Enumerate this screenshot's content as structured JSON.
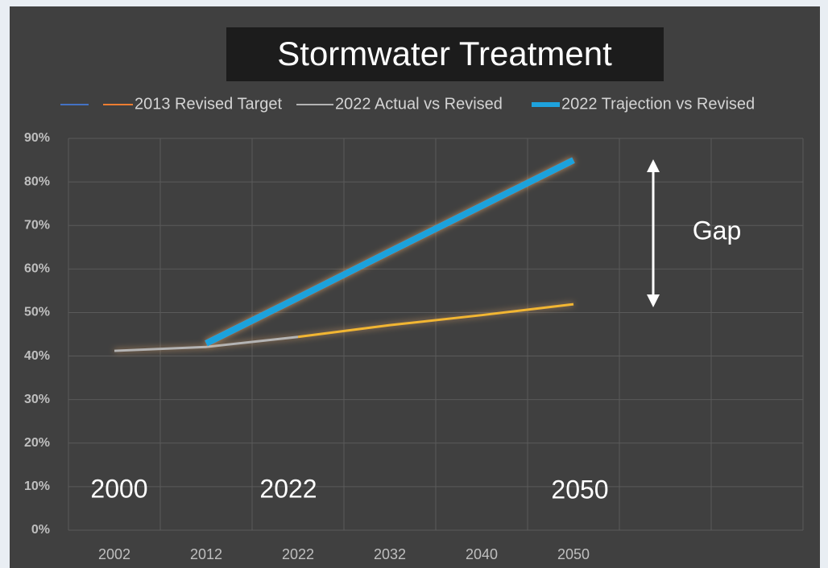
{
  "chart_data": {
    "type": "line",
    "title": "Stormwater Treatment",
    "categories": [
      "2002",
      "2012",
      "2022",
      "2032",
      "2040",
      "2050",
      null,
      null
    ],
    "series": [
      {
        "name": "2013 Revised Target",
        "color": "#f2b632",
        "values": [
          null,
          null,
          44.4,
          47.1,
          49.4,
          51.9,
          null,
          null
        ]
      },
      {
        "name": "2022 Actual vs Revised",
        "color": "#b4b4b4",
        "values": [
          41.2,
          42.1,
          44.4,
          null,
          null,
          null,
          null,
          null
        ]
      },
      {
        "name": "2022 Trajection vs Revised",
        "color": "#1ea2dc",
        "values": [
          null,
          42.9,
          53.4,
          64,
          74.5,
          85,
          null,
          null
        ]
      }
    ],
    "ylim": [
      0,
      90
    ],
    "yticks": [
      {
        "value": 0,
        "label": "0%"
      },
      {
        "value": 10,
        "label": "10%"
      },
      {
        "value": 20,
        "label": "20%"
      },
      {
        "value": 30,
        "label": "30%"
      },
      {
        "value": 40,
        "label": "40%"
      },
      {
        "value": 50,
        "label": "50%"
      },
      {
        "value": 60,
        "label": "60%"
      },
      {
        "value": 70,
        "label": "70%"
      },
      {
        "value": 80,
        "label": "80%"
      },
      {
        "value": 90,
        "label": "90%"
      }
    ],
    "grid": true,
    "legend": "top",
    "annotations": [
      "Gap",
      "2000",
      "2022",
      "2050"
    ]
  }
}
